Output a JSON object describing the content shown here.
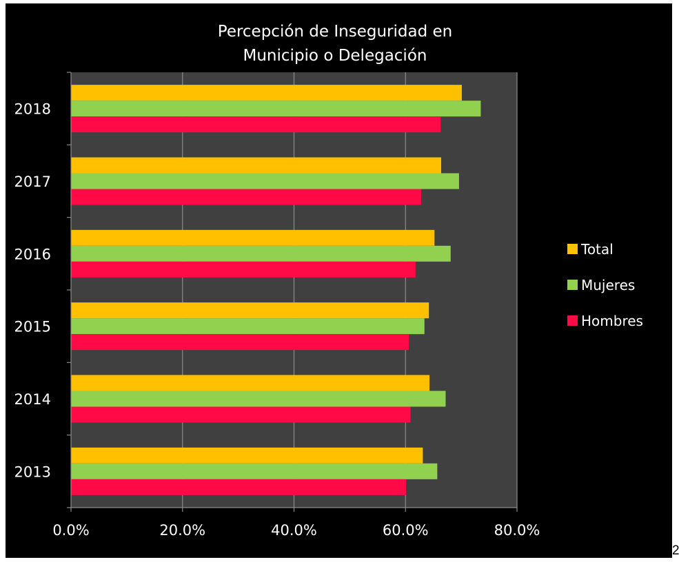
{
  "corner_note": "2",
  "colors": {
    "background": "#000000",
    "plot_area": "#404040",
    "gridline": "#8c8c8c",
    "axis": "#8c8c8c",
    "text": "#ffffff"
  },
  "chart_data": {
    "type": "bar",
    "orientation": "horizontal",
    "title": "Percepción de Inseguridad en Municipio o Delegación",
    "title_lines": [
      "Percepción de Inseguridad en",
      "Municipio o Delegación"
    ],
    "categories": [
      "2013",
      "2014",
      "2015",
      "2016",
      "2017",
      "2018"
    ],
    "series": [
      {
        "name": "Total",
        "color": "#ffc000",
        "values": [
          63.1,
          64.3,
          64.2,
          65.2,
          66.4,
          70.1
        ]
      },
      {
        "name": "Mujeres",
        "color": "#92d050",
        "values": [
          65.7,
          67.2,
          63.4,
          68.1,
          69.6,
          73.5
        ]
      },
      {
        "name": "Hombres",
        "color": "#ff0a46",
        "values": [
          60.1,
          60.9,
          60.6,
          61.8,
          62.8,
          66.3
        ]
      }
    ],
    "x_ticks": [
      "0.0%",
      "20.0%",
      "40.0%",
      "60.0%",
      "80.0%"
    ],
    "xlim": [
      0,
      80
    ],
    "xlabel": "",
    "ylabel": "",
    "grid": true,
    "legend_position": "right"
  }
}
